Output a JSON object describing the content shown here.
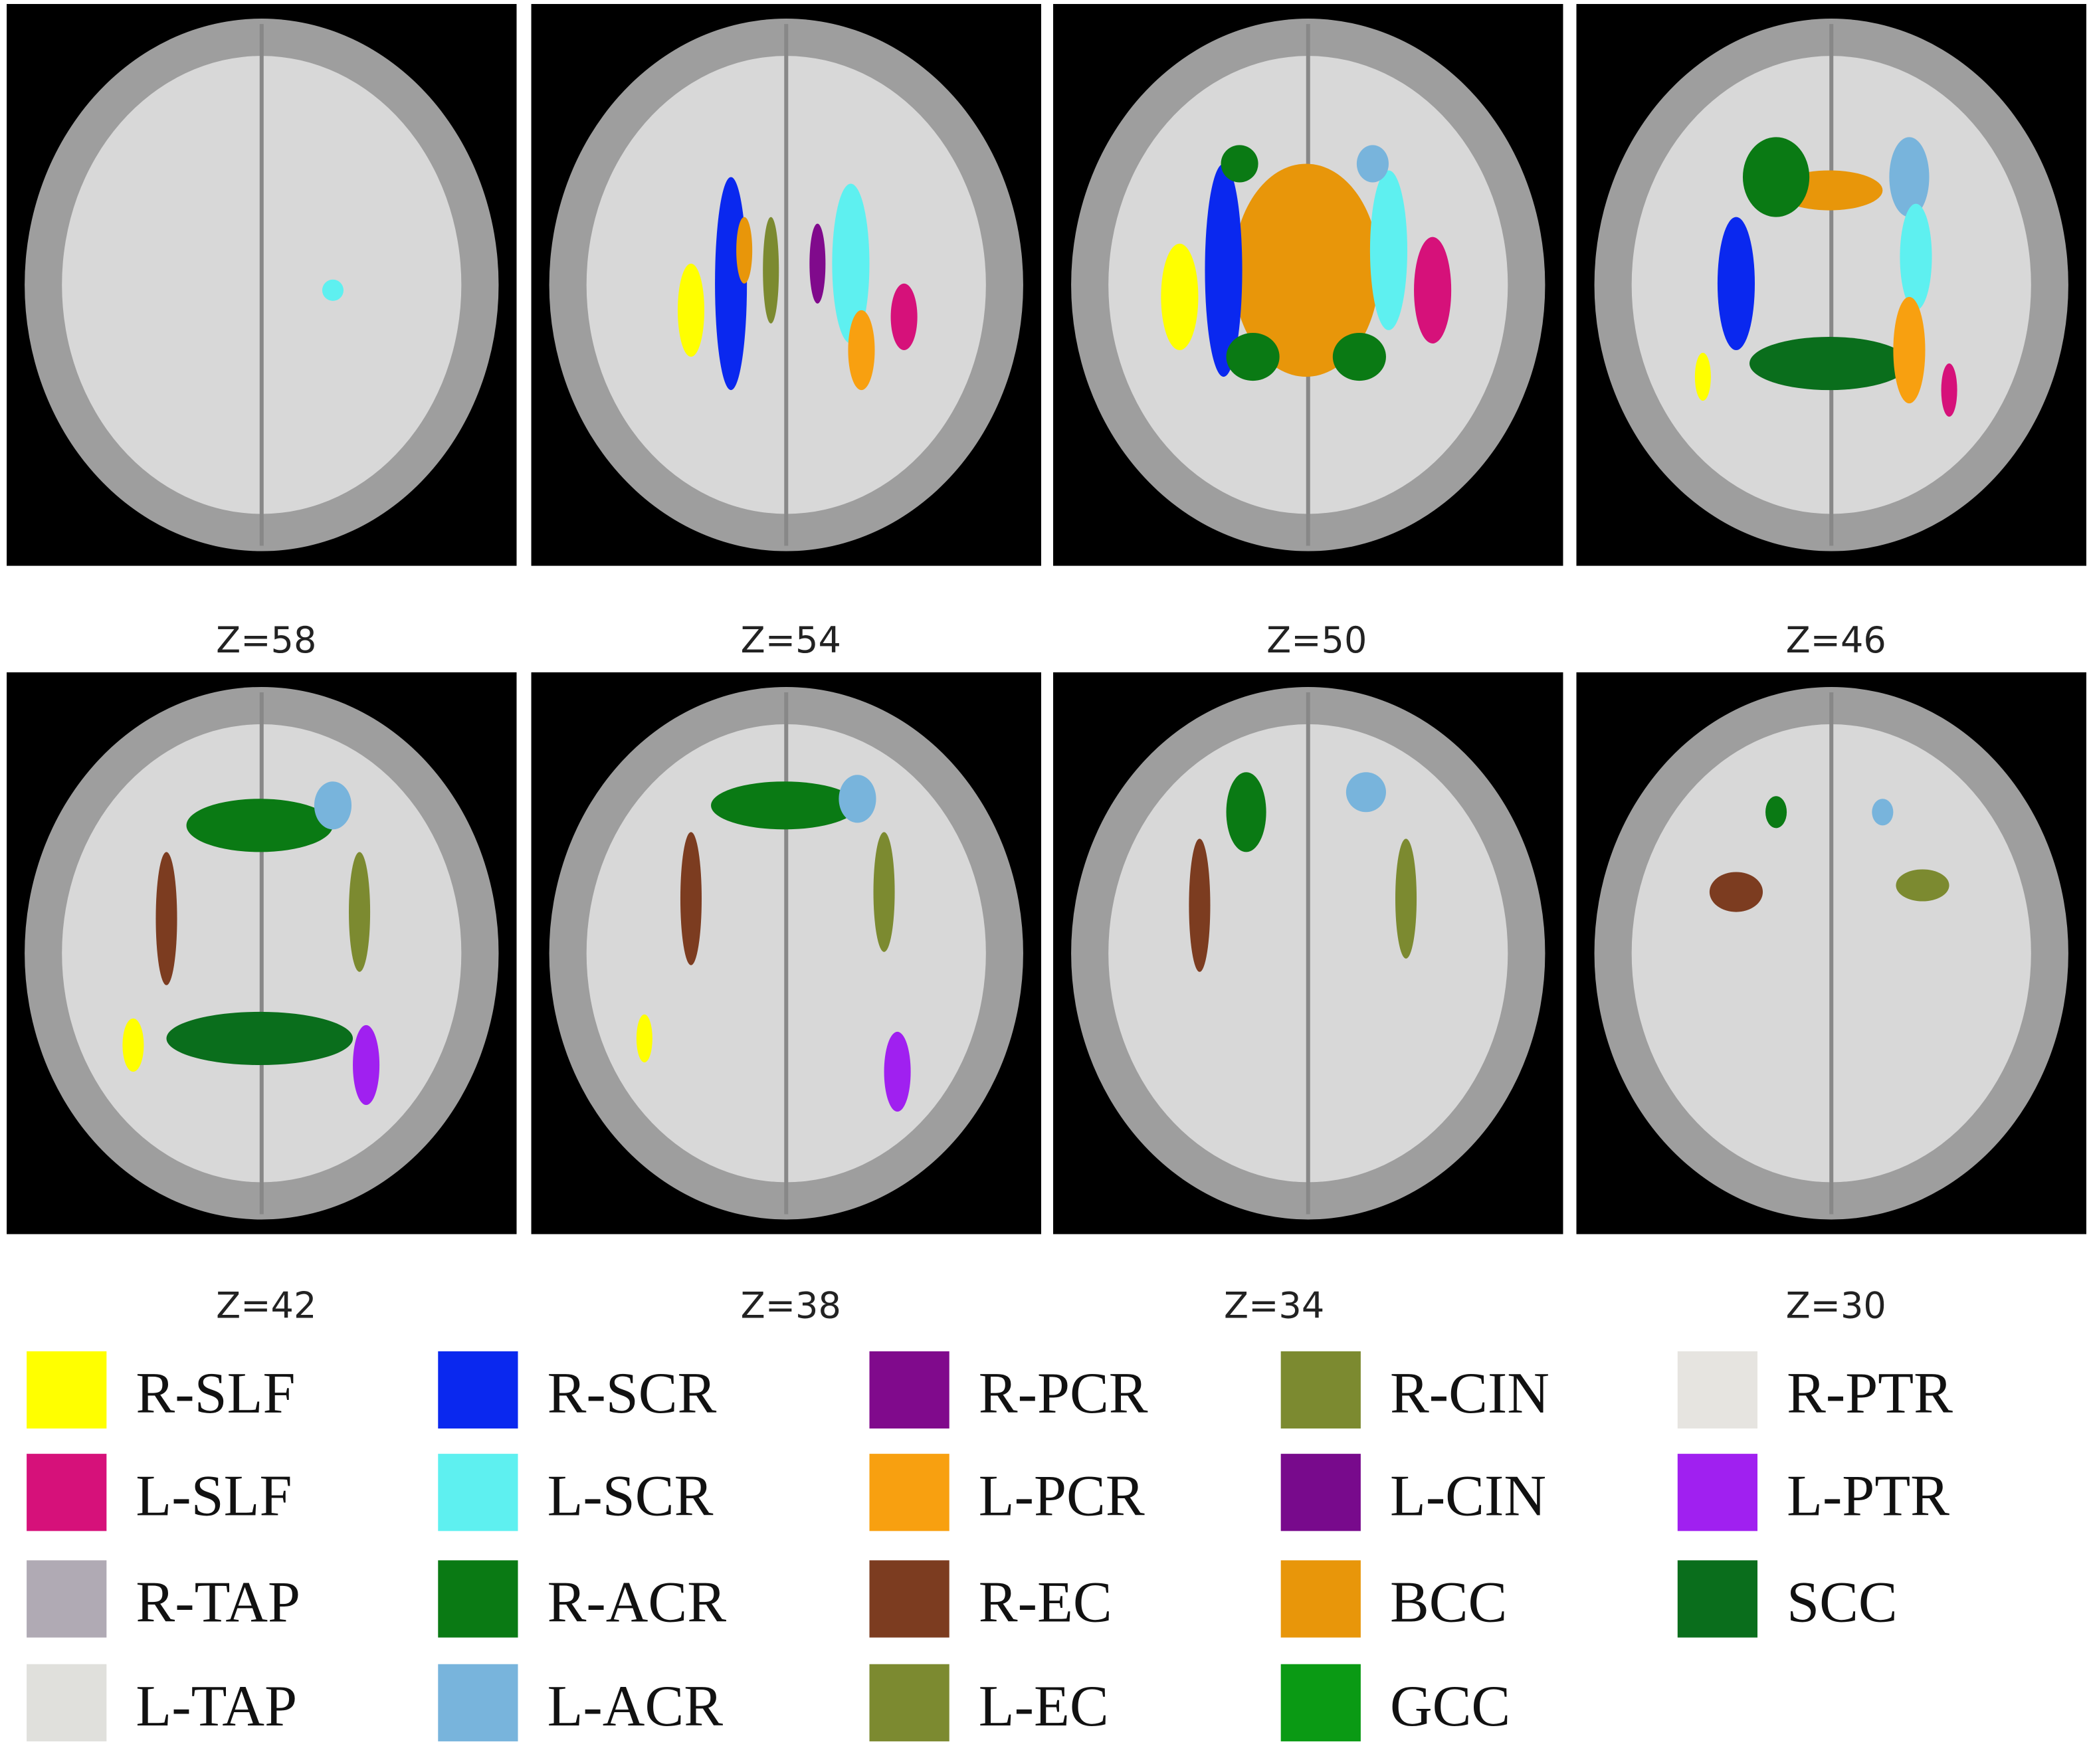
{
  "panels": [
    {
      "label": "Z=58"
    },
    {
      "label": "Z=54"
    },
    {
      "label": "Z=50"
    },
    {
      "label": "Z=46"
    },
    {
      "label": "Z=42"
    },
    {
      "label": "Z=38"
    },
    {
      "label": "Z=34"
    },
    {
      "label": "Z=30"
    }
  ],
  "legend": [
    {
      "label": "R-SLF",
      "color": "#ffff00"
    },
    {
      "label": "L-SLF",
      "color": "#d6117a"
    },
    {
      "label": "R-TAP",
      "color": "#b0aab4"
    },
    {
      "label": "L-TAP",
      "color": "#e0e0dc"
    },
    {
      "label": "R-SCR",
      "color": "#0a28ef"
    },
    {
      "label": "L-SCR",
      "color": "#5ef0f0"
    },
    {
      "label": "R-ACR",
      "color": "#0a7a14"
    },
    {
      "label": "L-ACR",
      "color": "#78b4dc"
    },
    {
      "label": "R-PCR",
      "color": "#800a8c"
    },
    {
      "label": "L-PCR",
      "color": "#f8a010"
    },
    {
      "label": "R-EC",
      "color": "#7c3c20"
    },
    {
      "label": "L-EC",
      "color": "#7c8a30"
    },
    {
      "label": "R-CIN",
      "color": "#7c8a30"
    },
    {
      "label": "L-CIN",
      "color": "#780a8c"
    },
    {
      "label": "BCC",
      "color": "#e8960a"
    },
    {
      "label": "GCC",
      "color": "#0a9a14"
    },
    {
      "label": "R-PTR",
      "color": "#e6e4e0"
    },
    {
      "label": "L-PTR",
      "color": "#a020f0"
    },
    {
      "label": "SCC",
      "color": "#0a6e1c"
    }
  ]
}
